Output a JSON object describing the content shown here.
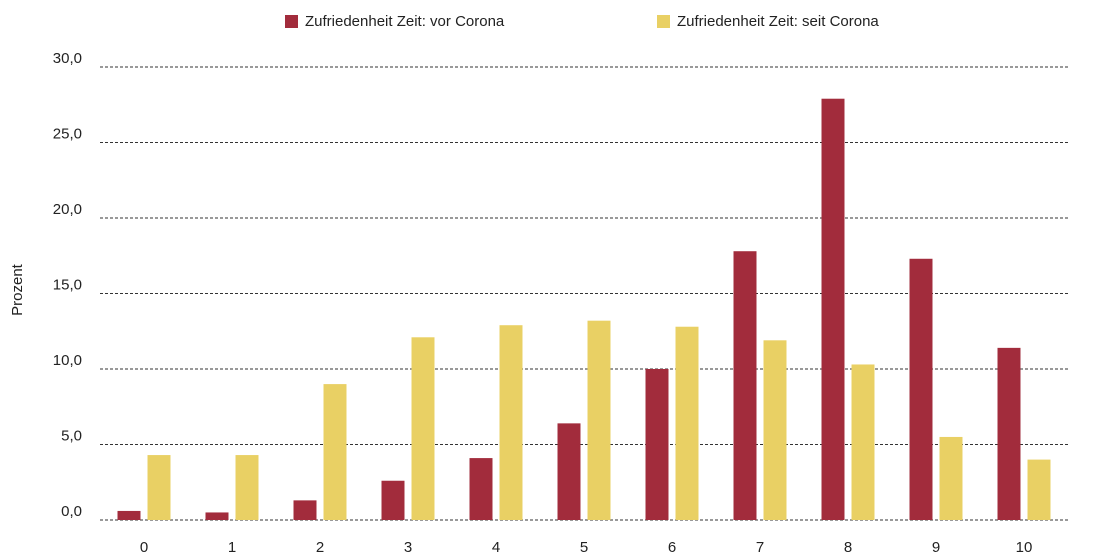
{
  "chart_data": {
    "type": "bar",
    "y_label": "Prozent",
    "categories": [
      "0",
      "1",
      "2",
      "3",
      "4",
      "5",
      "6",
      "7",
      "8",
      "9",
      "10"
    ],
    "series": [
      {
        "name": "Zufriedenheit Zeit: vor Corona",
        "color": "#a22c3c",
        "values": [
          0.6,
          0.5,
          1.3,
          2.6,
          4.1,
          6.4,
          10.0,
          17.8,
          27.9,
          17.3,
          11.4
        ]
      },
      {
        "name": "Zufriedenheit Zeit: seit Corona",
        "color": "#e9d064",
        "values": [
          4.3,
          4.3,
          9.0,
          12.1,
          12.9,
          13.2,
          12.8,
          11.9,
          10.3,
          5.5,
          4.0
        ]
      }
    ],
    "ylim": [
      0,
      30
    ],
    "yticks": [
      {
        "value": 0,
        "label": "0,0"
      },
      {
        "value": 5,
        "label": "5,0"
      },
      {
        "value": 10,
        "label": "10,0"
      },
      {
        "value": 15,
        "label": "15,0"
      },
      {
        "value": 20,
        "label": "20,0"
      },
      {
        "value": 25,
        "label": "25,0"
      },
      {
        "value": 30,
        "label": "30,0"
      }
    ],
    "grid": true,
    "legend": "top"
  }
}
